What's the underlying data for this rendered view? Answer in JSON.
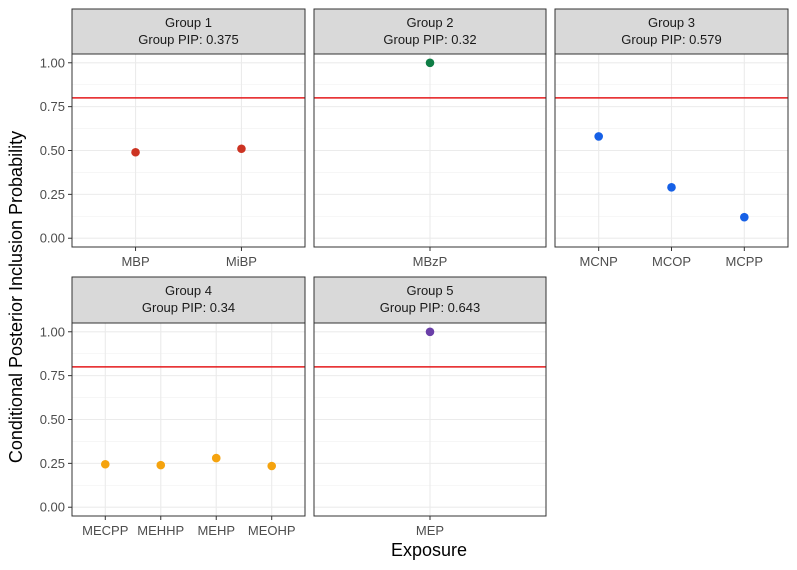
{
  "chart_data": {
    "type": "scatter",
    "xlabel": "Exposure",
    "ylabel": "Conditional Posterior Inclusion Probability",
    "ylim": [
      -0.05,
      1.05
    ],
    "yticks": [
      0.0,
      0.25,
      0.5,
      0.75,
      1.0
    ],
    "ytick_labels": [
      "0.00",
      "0.25",
      "0.50",
      "0.75",
      "1.00"
    ],
    "threshold": 0.8,
    "threshold_color": "#e41a1c",
    "grid": true,
    "panels": [
      {
        "title": "Group 1",
        "subtitle": "Group PIP: 0.375",
        "color": "#cc3322",
        "categories": [
          "MBP",
          "MiBP"
        ],
        "values": [
          0.49,
          0.51
        ]
      },
      {
        "title": "Group 2",
        "subtitle": "Group PIP: 0.32",
        "color": "#0f7d45",
        "categories": [
          "MBzP"
        ],
        "values": [
          1.0
        ]
      },
      {
        "title": "Group 3",
        "subtitle": "Group PIP: 0.579",
        "color": "#1660e6",
        "categories": [
          "MCNP",
          "MCOP",
          "MCPP"
        ],
        "values": [
          0.58,
          0.29,
          0.12
        ]
      },
      {
        "title": "Group 4",
        "subtitle": "Group PIP: 0.34",
        "color": "#f5a30e",
        "categories": [
          "MECPP",
          "MEHHP",
          "MEHP",
          "MEOHP"
        ],
        "values": [
          0.245,
          0.24,
          0.28,
          0.235
        ]
      },
      {
        "title": "Group 5",
        "subtitle": "Group PIP: 0.643",
        "color": "#6a3fa8",
        "categories": [
          "MEP"
        ],
        "values": [
          1.0
        ]
      }
    ]
  }
}
